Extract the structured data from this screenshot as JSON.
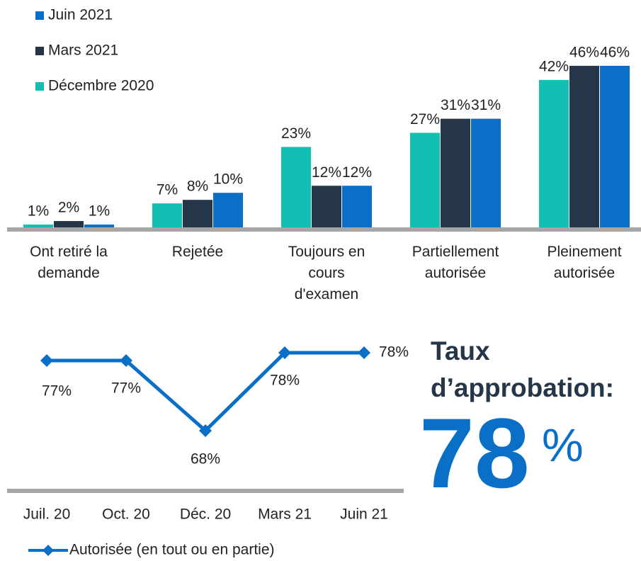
{
  "chart_data": [
    {
      "type": "bar",
      "categories": [
        "Ont retiré la demande",
        "Rejetée",
        "Toujours en cours d'examen",
        "Partiellement autorisée",
        "Pleinement autorisée"
      ],
      "series": [
        {
          "name": "Décembre 2020",
          "color": "#12bfb2",
          "values": [
            1,
            7,
            23,
            27,
            42
          ],
          "value_labels": [
            "1%",
            "7%",
            "23%",
            "27%",
            "42%"
          ]
        },
        {
          "name": "Mars 2021",
          "color": "#243648",
          "values": [
            2,
            8,
            12,
            31,
            46
          ],
          "value_labels": [
            "2%",
            "8%",
            "12%",
            "31%",
            "46%"
          ]
        },
        {
          "name": "Juin 2021",
          "color": "#0a6fc7",
          "values": [
            1,
            10,
            12,
            31,
            46
          ],
          "value_labels": [
            "1%",
            "10%",
            "12%",
            "31%",
            "46%"
          ]
        }
      ],
      "ylim": [
        0,
        50
      ]
    },
    {
      "type": "line",
      "categories": [
        "Juil. 20",
        "Oct. 20",
        "Déc. 20",
        "Mars 21",
        "Juin 21"
      ],
      "series": [
        {
          "name": "Autorisée (en tout ou en partie)",
          "color": "#0a6fc7",
          "values": [
            77,
            77,
            68,
            78,
            78
          ],
          "value_labels": [
            "77%",
            "77%",
            "68%",
            "78%",
            "78%"
          ]
        }
      ],
      "ylim": [
        60,
        80
      ]
    }
  ],
  "headline": {
    "label": "Taux d’approbation:",
    "value": 78,
    "unit": "%"
  }
}
